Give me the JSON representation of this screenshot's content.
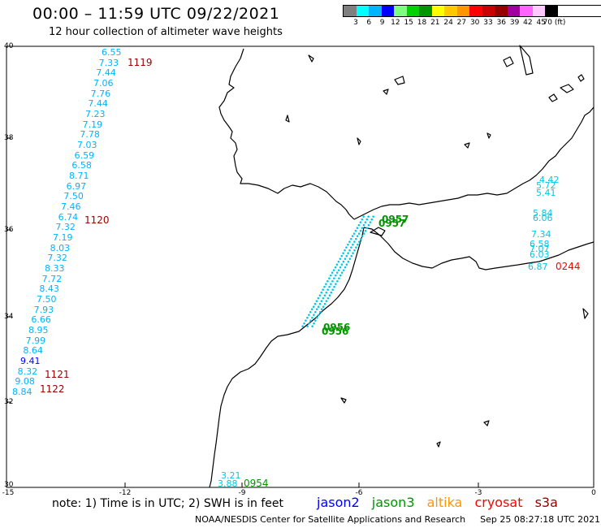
{
  "header": {
    "title": "00:00 – 11:59 UTC 09/22/2021",
    "subtitle": "12 hour collection of altimeter wave heights"
  },
  "legend": {
    "colors": [
      "#7f7f7f",
      "#00ffff",
      "#00b4ff",
      "#0000ff",
      "#7dff7d",
      "#00d200",
      "#009600",
      "#ffff00",
      "#ffc800",
      "#ff9600",
      "#ff0000",
      "#c80000",
      "#960000",
      "#a000a0",
      "#ff64ff",
      "#ffc8ff",
      "#000000"
    ],
    "labels": [
      "3",
      "6",
      "9",
      "12",
      "15",
      "18",
      "21",
      "24",
      "27",
      "30",
      "33",
      "36",
      "39",
      "42",
      "45",
      "70 (ft)"
    ]
  },
  "axes": {
    "y_ticks": [
      "40",
      "38",
      "36",
      "34",
      "32",
      "30"
    ],
    "x_ticks": [
      "-15",
      "-12",
      "-9",
      "-6",
      "-3",
      "0"
    ]
  },
  "note": "note:  1) Time is in UTC;  2) SWH is in feet",
  "satellites": [
    {
      "name": "jason2",
      "color": "#0000ff"
    },
    {
      "name": "jason3",
      "color": "#009600"
    },
    {
      "name": "altika",
      "color": "#ff9600"
    },
    {
      "name": "cryosat",
      "color": "#ff0000"
    },
    {
      "name": "s3a",
      "color": "#960000"
    }
  ],
  "footer": {
    "center": "NOAA/NESDIS Center for Satellite Applications and Research",
    "timestamp": "Sep 25 08:27:18 UTC 2021"
  },
  "colors": {
    "wave_cyan": "#00c8e6",
    "wave_light": "#00b4ff",
    "wave_blue": "#0000ff",
    "time_s3a": "#960000",
    "time_jason3": "#009600",
    "time_cryosat": "#ff0000",
    "coast": "#000000"
  },
  "track_a": {
    "values": [
      "6.55",
      "7.33",
      "7.44",
      "7.06",
      "7.76",
      "7.44",
      "7.23",
      "7.19",
      "7.78",
      "7.03",
      "6.59",
      "6.58",
      "8.71",
      "6.97",
      "7.50",
      "7.46",
      "6.74",
      "7.32",
      "7.19",
      "8.03",
      "7.32",
      "8.33",
      "7.72",
      "8.43",
      "7.50",
      "7.93",
      "6.66",
      "8.95",
      "7.99",
      "8.64",
      "9.41",
      "8.32",
      "9.08",
      "8.84"
    ],
    "times": [
      "1119",
      "1120",
      "1121",
      "1122"
    ]
  },
  "track_b": {
    "values": [
      "3.21",
      "3.88"
    ],
    "times": [
      "0954"
    ]
  },
  "track_c": {
    "values": [
      "4.42",
      "5.72",
      "5.41",
      "5.84",
      "6.06",
      "7.34",
      "6.58",
      "7.07",
      "6.03",
      "6.87"
    ],
    "times": [
      "0244"
    ]
  },
  "strait_times": [
    "0957",
    "0957",
    "0956",
    "0956"
  ]
}
